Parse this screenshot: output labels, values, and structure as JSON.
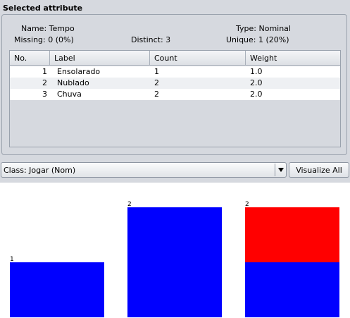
{
  "panel": {
    "title": "Selected attribute",
    "name_label": "Name:",
    "name_value": "Tempo",
    "missing_label": "Missing:",
    "missing_value": "0 (0%)",
    "distinct_label": "Distinct:",
    "distinct_value": "3",
    "type_label": "Type:",
    "type_value": "Nominal",
    "unique_label": "Unique:",
    "unique_value": "1 (20%)"
  },
  "table": {
    "headers": [
      "No.",
      "Label",
      "Count",
      "Weight"
    ],
    "rows": [
      {
        "no": "1",
        "label": "Ensolarado",
        "count": "1",
        "weight": "1.0"
      },
      {
        "no": "2",
        "label": "Nublado",
        "count": "2",
        "weight": "2.0"
      },
      {
        "no": "3",
        "label": "Chuva",
        "count": "2",
        "weight": "2.0"
      }
    ]
  },
  "class_selector": {
    "value": "Class: Jogar (Nom)",
    "icon": "chevron-down-icon"
  },
  "visualize_button": {
    "label": "Visualize All"
  },
  "colors": {
    "class_blue": "#0000ff",
    "class_red": "#ff0000"
  },
  "chart_data": {
    "type": "bar",
    "stacked": true,
    "categories": [
      "Ensolarado",
      "Nublado",
      "Chuva"
    ],
    "bar_labels": [
      "1",
      "2",
      "2"
    ],
    "series": [
      {
        "color": "#0000ff",
        "values": [
          1,
          2,
          1
        ]
      },
      {
        "color": "#ff0000",
        "values": [
          0,
          0,
          1
        ]
      }
    ],
    "ylim": [
      0,
      2
    ],
    "grid": false,
    "legend": "none"
  }
}
